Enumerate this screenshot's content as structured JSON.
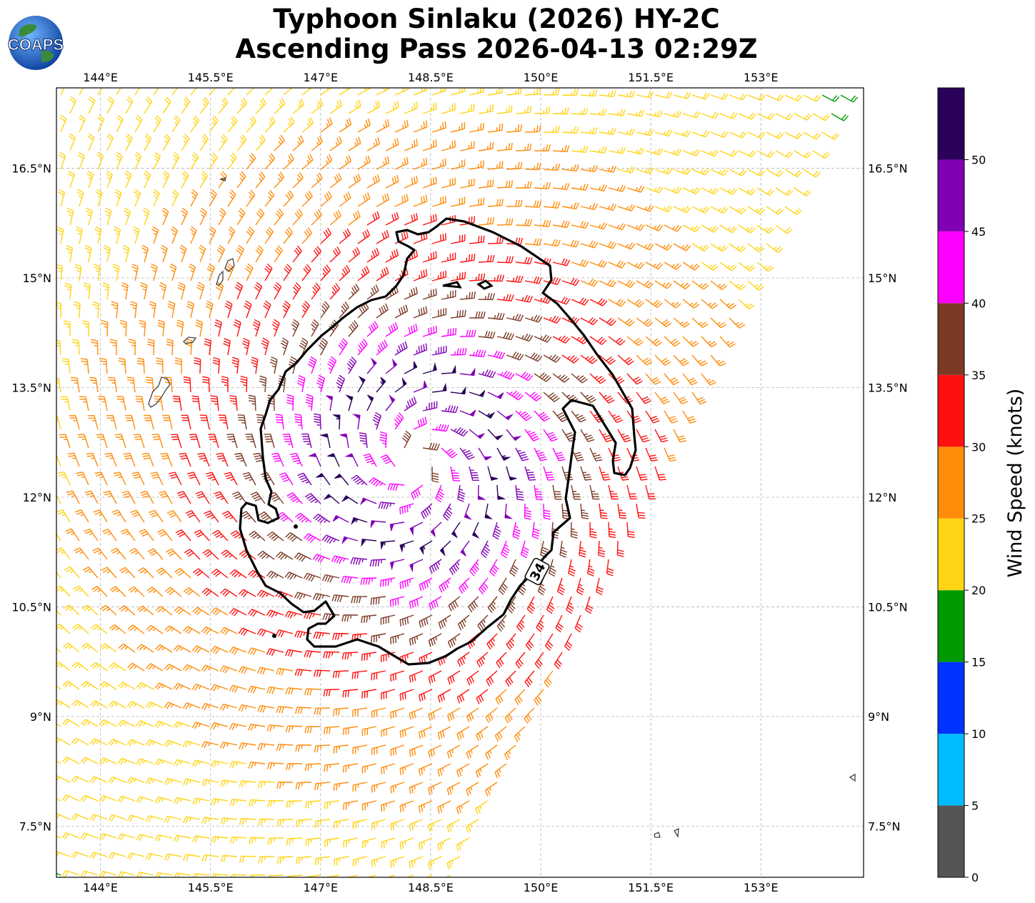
{
  "title": {
    "line1": "Typhoon Sinlaku (2026) HY-2C",
    "line2": "Ascending Pass 2026-04-13 02:29Z"
  },
  "logo": {
    "text": "COAPS",
    "icon": "globe-icon"
  },
  "map": {
    "lon_range": [
      143.4,
      154.4
    ],
    "lat_range": [
      6.8,
      17.6
    ],
    "lon_ticks": [
      {
        "value": 144,
        "label": "144°E"
      },
      {
        "value": 145.5,
        "label": "145.5°E"
      },
      {
        "value": 147,
        "label": "147°E"
      },
      {
        "value": 148.5,
        "label": "148.5°E"
      },
      {
        "value": 150,
        "label": "150°E"
      },
      {
        "value": 151.5,
        "label": "151.5°E"
      },
      {
        "value": 153,
        "label": "153°E"
      }
    ],
    "lat_ticks": [
      {
        "value": 16.5,
        "label": "16.5°N"
      },
      {
        "value": 15,
        "label": "15°N"
      },
      {
        "value": 13.5,
        "label": "13.5°N"
      },
      {
        "value": 12,
        "label": "12°N"
      },
      {
        "value": 10.5,
        "label": "10.5°N"
      },
      {
        "value": 9,
        "label": "9°N"
      },
      {
        "value": 7.5,
        "label": "7.5°N"
      }
    ],
    "storm_center": {
      "lon": 148.3,
      "lat": 12.5
    },
    "contour_label": "34"
  },
  "colorbar": {
    "label": "Wind Speed (knots)",
    "ticks": [
      "0",
      "5",
      "10",
      "15",
      "20",
      "25",
      "30",
      "35",
      "40",
      "45",
      "50"
    ],
    "colors": [
      "#555555",
      "#00bbff",
      "#0033ff",
      "#009900",
      "#ffd414",
      "#ff8c0a",
      "#ff1010",
      "#7b3a26",
      "#ff00ff",
      "#8000b4",
      "#2a005a"
    ]
  },
  "chart_data": {
    "type": "wind-barb-map",
    "title": "Typhoon Sinlaku (2026) HY-2C Ascending Pass 2026-04-13 02:29Z",
    "units": "knots",
    "speed_bins": [
      0,
      5,
      10,
      15,
      20,
      25,
      30,
      35,
      40,
      45,
      50,
      55
    ],
    "max_wind_near_center": 50,
    "contour_34kt": "34"
  }
}
